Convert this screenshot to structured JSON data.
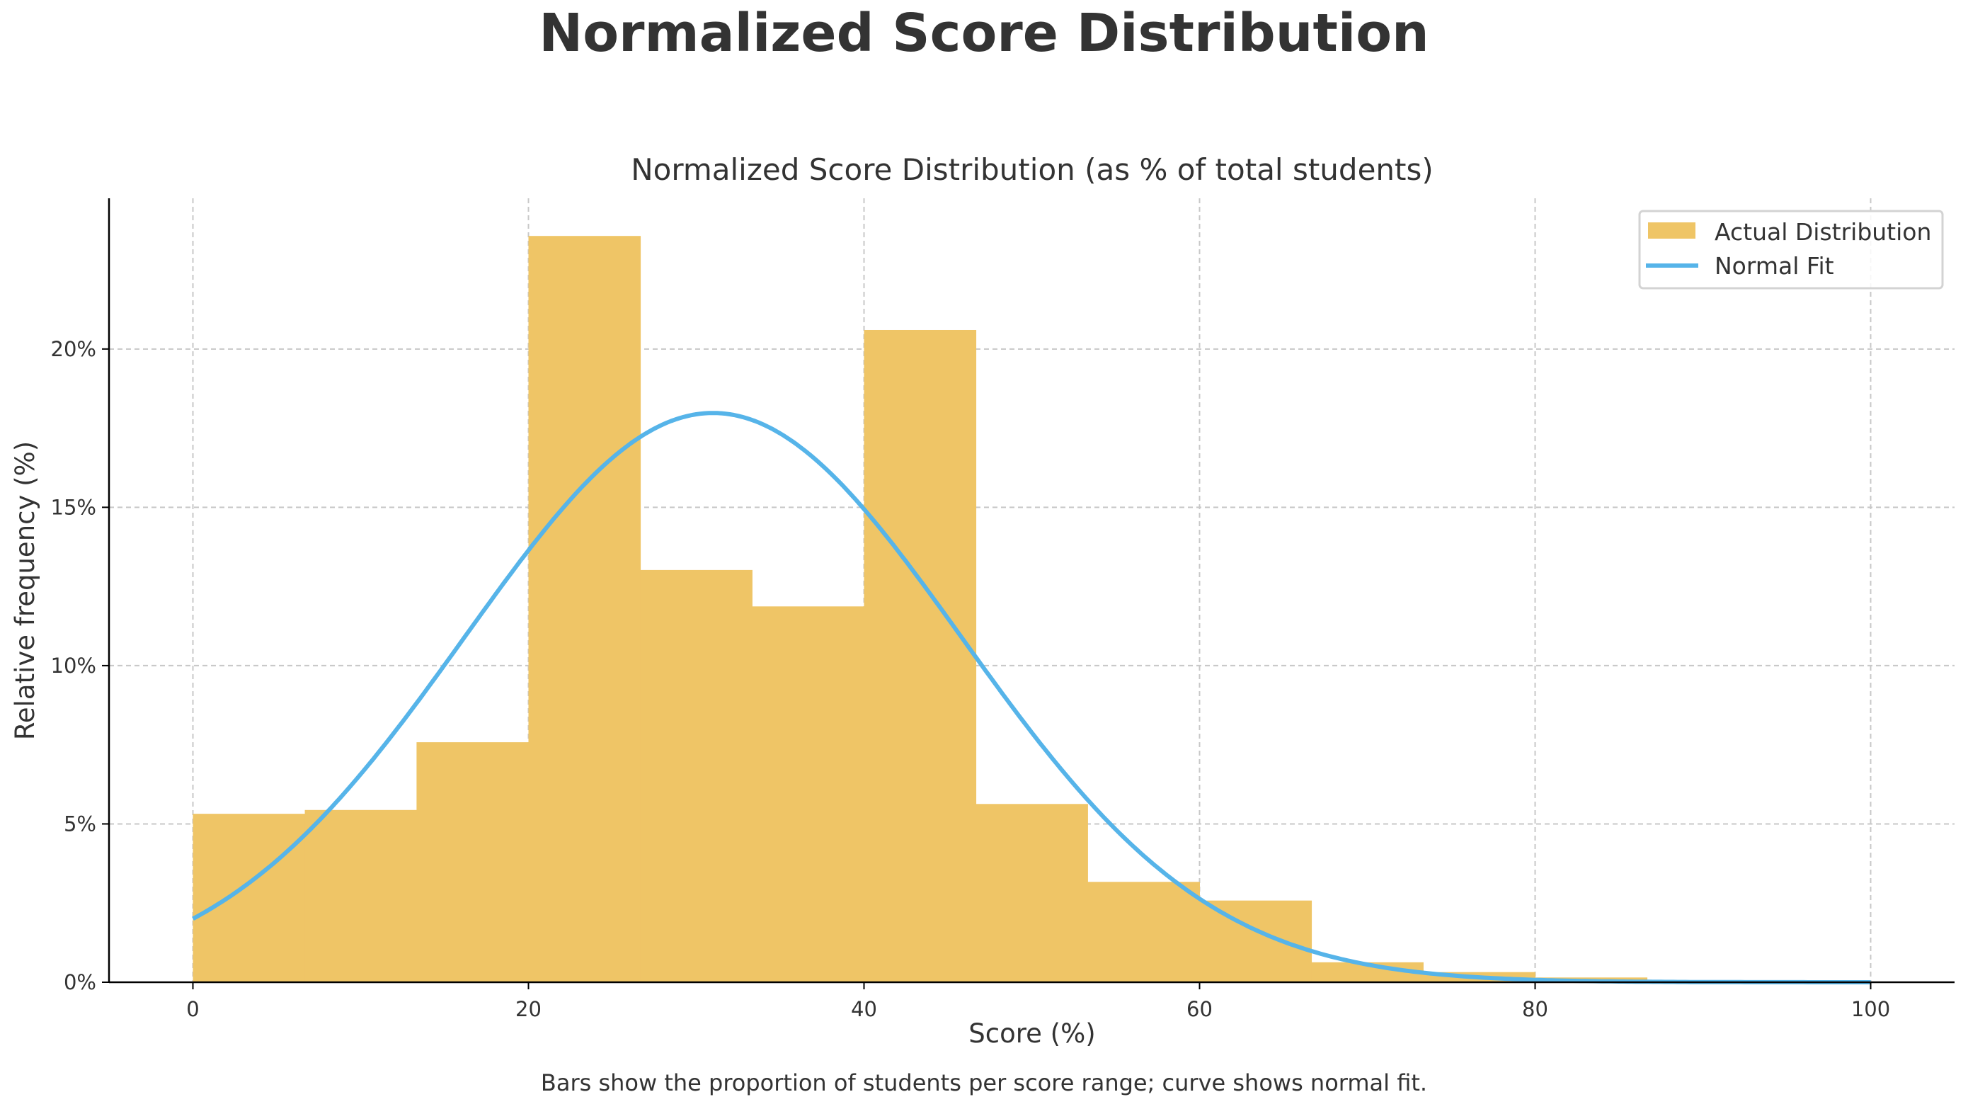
{
  "figure_title": "Normalized Score Distribution",
  "caption": "Bars show the proportion of students per score range; curve shows normal fit.",
  "chart_data": {
    "type": "bar",
    "title": "Normalized Score Distribution (as % of total students)",
    "xlabel": "Score (%)",
    "ylabel": "Relative frequency (%)",
    "xlim": [
      -5,
      105
    ],
    "ylim": [
      0,
      24.76
    ],
    "x_ticks": [
      0,
      20,
      40,
      60,
      80,
      100
    ],
    "x_tick_labels": [
      "0",
      "20",
      "40",
      "60",
      "80",
      "100"
    ],
    "y_ticks": [
      0,
      5,
      10,
      15,
      20
    ],
    "y_tick_labels": [
      "0%",
      "5%",
      "10%",
      "15%",
      "20%"
    ],
    "grid": true,
    "legend_position": "top-right",
    "bin_edges": [
      0,
      6.67,
      13.33,
      20,
      26.67,
      33.33,
      40,
      46.67,
      53.33,
      60,
      66.67,
      73.33,
      80,
      86.67,
      93.33,
      100
    ],
    "series": [
      {
        "name": "Actual Distribution",
        "type": "histogram",
        "color": "#EFC566",
        "values": [
          5.32,
          5.44,
          7.58,
          23.57,
          13.02,
          11.87,
          20.6,
          5.63,
          3.17,
          2.58,
          0.63,
          0.32,
          0.15,
          0.05,
          0.03
        ]
      },
      {
        "name": "Normal Fit",
        "type": "line",
        "color": "#56B4E9",
        "mean": 31,
        "std": 14.8,
        "x_range": [
          0,
          100
        ]
      }
    ]
  }
}
